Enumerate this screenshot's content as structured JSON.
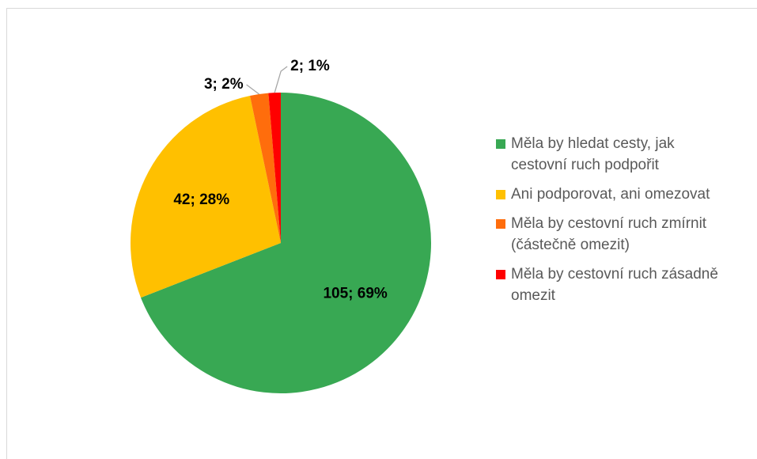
{
  "chart_data": {
    "type": "pie",
    "categories": [
      "Měla by hledat cesty, jak cestovní ruch podpořit",
      "Ani podporovat, ani omezovat",
      "Měla by cestovní ruch zmírnit (částečně omezit)",
      "Měla by cestovní ruch zásadně omezit"
    ],
    "values": [
      105,
      42,
      3,
      2
    ],
    "value_labels": [
      "105; 69%",
      "42; 28%",
      "3; 2%",
      "2; 1%"
    ],
    "colors": [
      "#38a853",
      "#ffc000",
      "#ff6d0c",
      "#ff0000"
    ],
    "legend": "right"
  }
}
